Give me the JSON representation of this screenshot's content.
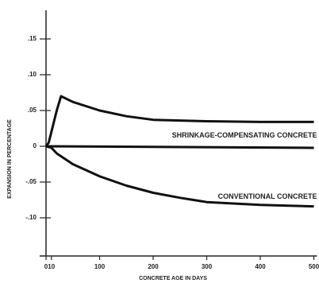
{
  "chart_data": {
    "type": "line",
    "x_label": "CONCRETE AGE IN DAYS",
    "y_label": "EXPANSION IN PERCENTAGE",
    "xlim": [
      0,
      500
    ],
    "ylim": [
      -0.15,
      0.19
    ],
    "xticks": [
      0,
      10,
      100,
      200,
      300,
      400,
      500
    ],
    "yticks": [
      {
        "value": 0.15,
        "label": ".15"
      },
      {
        "value": 0.1,
        "label": ".10"
      },
      {
        "value": 0.05,
        "label": ".05"
      },
      0,
      {
        "value": -0.05,
        "label": "-.05"
      },
      {
        "value": -0.1,
        "label": "-.10"
      }
    ],
    "series": [
      {
        "name": "SHRINKAGE-COMPENSATING CONCRETE",
        "color": "#111111",
        "x": [
          0,
          5,
          10,
          20,
          28,
          50,
          100,
          150,
          200,
          300,
          400,
          500
        ],
        "values": [
          0,
          0.005,
          0.02,
          0.05,
          0.07,
          0.062,
          0.05,
          0.042,
          0.037,
          0.035,
          0.034,
          0.034
        ]
      },
      {
        "name": "CONVENTIONAL CONCRETE",
        "color": "#111111",
        "x": [
          0,
          10,
          20,
          50,
          100,
          150,
          200,
          250,
          300,
          400,
          500
        ],
        "values": [
          0,
          -0.002,
          -0.01,
          -0.025,
          -0.042,
          -0.055,
          -0.065,
          -0.072,
          -0.078,
          -0.082,
          -0.084
        ]
      }
    ]
  }
}
